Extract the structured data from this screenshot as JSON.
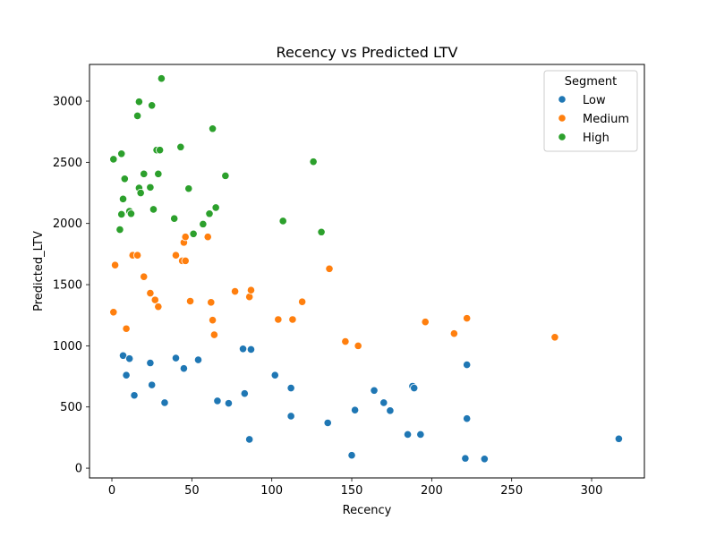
{
  "chart_data": {
    "type": "scatter",
    "title": "Recency vs Predicted LTV",
    "xlabel": "Recency",
    "ylabel": "Predicted_LTV",
    "xlim": [
      -14,
      333
    ],
    "ylim": [
      -80,
      3300
    ],
    "xticks": [
      0,
      50,
      100,
      150,
      200,
      250,
      300
    ],
    "yticks": [
      0,
      500,
      1000,
      1500,
      2000,
      2500,
      3000
    ],
    "grid": false,
    "legend": {
      "title": "Segment",
      "placement": "top-right"
    },
    "series": [
      {
        "name": "Low",
        "color": "#1f77b4",
        "points": [
          [
            7,
            920
          ],
          [
            9,
            760
          ],
          [
            11,
            895
          ],
          [
            14,
            595
          ],
          [
            24,
            860
          ],
          [
            25,
            680
          ],
          [
            33,
            535
          ],
          [
            40,
            900
          ],
          [
            45,
            815
          ],
          [
            54,
            885
          ],
          [
            66,
            550
          ],
          [
            73,
            530
          ],
          [
            82,
            975
          ],
          [
            83,
            610
          ],
          [
            86,
            235
          ],
          [
            87,
            970
          ],
          [
            102,
            760
          ],
          [
            112,
            655
          ],
          [
            112,
            425
          ],
          [
            135,
            370
          ],
          [
            150,
            105
          ],
          [
            152,
            475
          ],
          [
            164,
            635
          ],
          [
            170,
            535
          ],
          [
            174,
            470
          ],
          [
            185,
            275
          ],
          [
            188,
            670
          ],
          [
            189,
            655
          ],
          [
            193,
            275
          ],
          [
            221,
            80
          ],
          [
            222,
            845
          ],
          [
            222,
            405
          ],
          [
            233,
            75
          ],
          [
            317,
            240
          ]
        ]
      },
      {
        "name": "Medium",
        "color": "#ff7f0e",
        "points": [
          [
            1,
            1275
          ],
          [
            2,
            1660
          ],
          [
            9,
            1140
          ],
          [
            13,
            1740
          ],
          [
            16,
            1740
          ],
          [
            20,
            1565
          ],
          [
            24,
            1430
          ],
          [
            27,
            1375
          ],
          [
            29,
            1320
          ],
          [
            40,
            1740
          ],
          [
            44,
            1695
          ],
          [
            45,
            1845
          ],
          [
            46,
            1890
          ],
          [
            46,
            1695
          ],
          [
            49,
            1365
          ],
          [
            60,
            1890
          ],
          [
            62,
            1355
          ],
          [
            63,
            1210
          ],
          [
            64,
            1090
          ],
          [
            77,
            1445
          ],
          [
            86,
            1400
          ],
          [
            87,
            1455
          ],
          [
            104,
            1215
          ],
          [
            113,
            1215
          ],
          [
            119,
            1360
          ],
          [
            136,
            1630
          ],
          [
            146,
            1035
          ],
          [
            154,
            1000
          ],
          [
            196,
            1195
          ],
          [
            214,
            1100
          ],
          [
            222,
            1225
          ],
          [
            277,
            1070
          ]
        ]
      },
      {
        "name": "High",
        "color": "#2ca02c",
        "points": [
          [
            1,
            2525
          ],
          [
            6,
            2570
          ],
          [
            5,
            1950
          ],
          [
            6,
            2075
          ],
          [
            7,
            2200
          ],
          [
            8,
            2365
          ],
          [
            11,
            2100
          ],
          [
            12,
            2080
          ],
          [
            16,
            2880
          ],
          [
            17,
            2995
          ],
          [
            17,
            2290
          ],
          [
            18,
            2250
          ],
          [
            20,
            2405
          ],
          [
            24,
            2295
          ],
          [
            25,
            2965
          ],
          [
            26,
            2115
          ],
          [
            28,
            2600
          ],
          [
            29,
            2405
          ],
          [
            30,
            2600
          ],
          [
            31,
            3185
          ],
          [
            39,
            2040
          ],
          [
            43,
            2625
          ],
          [
            48,
            2285
          ],
          [
            51,
            1915
          ],
          [
            57,
            1995
          ],
          [
            61,
            2080
          ],
          [
            63,
            2775
          ],
          [
            65,
            2130
          ],
          [
            71,
            2390
          ],
          [
            107,
            2020
          ],
          [
            126,
            2505
          ],
          [
            131,
            1930
          ]
        ]
      }
    ]
  }
}
